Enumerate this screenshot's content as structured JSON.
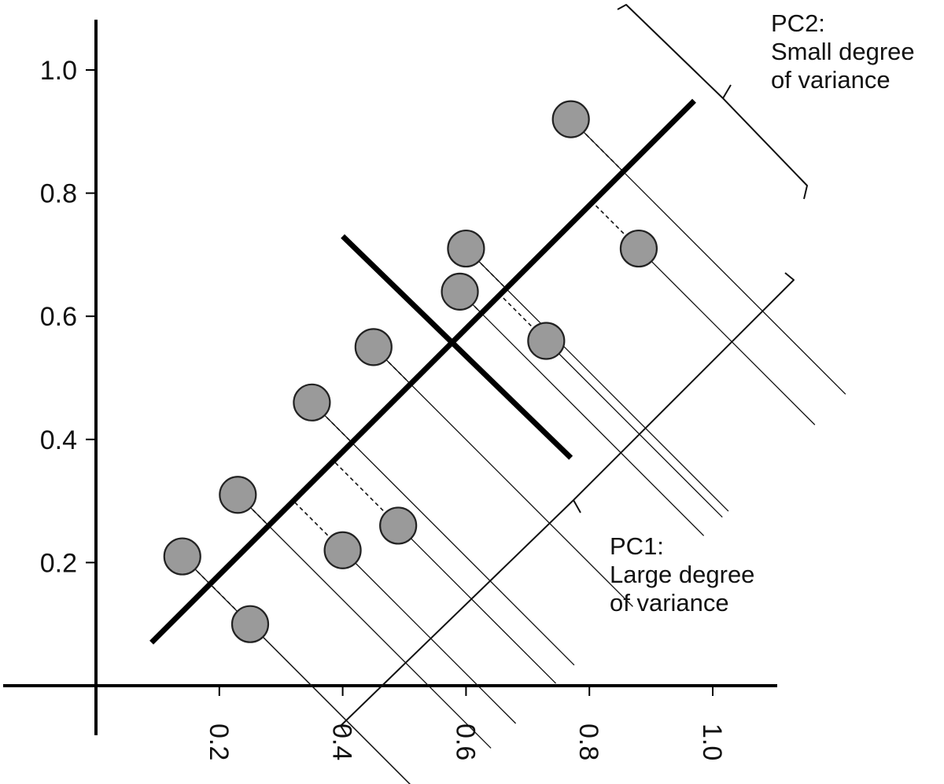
{
  "chart_data": {
    "type": "scatter",
    "title": "",
    "xlabel": "",
    "ylabel": "",
    "xlim": [
      0,
      1.1
    ],
    "ylim": [
      0,
      1.0
    ],
    "x_ticks": [
      0.2,
      0.4,
      0.6,
      0.8,
      1.0
    ],
    "x_tick_labels": [
      "0.2",
      "0.4",
      "0.6",
      "0.8",
      "1.0"
    ],
    "y_ticks": [
      0.2,
      0.4,
      0.6,
      0.8,
      1.0
    ],
    "y_tick_labels": [
      "0.2",
      "0.4",
      "0.6",
      "0.8",
      "1.0"
    ],
    "grid": false,
    "points": [
      {
        "x": 0.14,
        "y": 0.21
      },
      {
        "x": 0.23,
        "y": 0.31
      },
      {
        "x": 0.25,
        "y": 0.1
      },
      {
        "x": 0.35,
        "y": 0.46
      },
      {
        "x": 0.4,
        "y": 0.22
      },
      {
        "x": 0.45,
        "y": 0.55
      },
      {
        "x": 0.49,
        "y": 0.26
      },
      {
        "x": 0.59,
        "y": 0.64
      },
      {
        "x": 0.6,
        "y": 0.71
      },
      {
        "x": 0.73,
        "y": 0.56
      },
      {
        "x": 0.77,
        "y": 0.92
      },
      {
        "x": 0.88,
        "y": 0.71
      }
    ],
    "pc1_axis": {
      "from": [
        0.09,
        0.07
      ],
      "to": [
        0.97,
        0.95
      ]
    },
    "pc2_axis": {
      "from": [
        0.4,
        0.73
      ],
      "to": [
        0.77,
        0.37
      ]
    },
    "annotations": [
      {
        "id": "pc2",
        "lines": [
          "PC2:",
          "Small degree",
          "of variance"
        ]
      },
      {
        "id": "pc1",
        "lines": [
          "PC1:",
          "Large degree",
          "of variance"
        ]
      }
    ],
    "style": {
      "point_fill": "#9a9a9a",
      "point_stroke": "#222222",
      "axis_color": "#000000",
      "line_color": "#111111"
    }
  }
}
